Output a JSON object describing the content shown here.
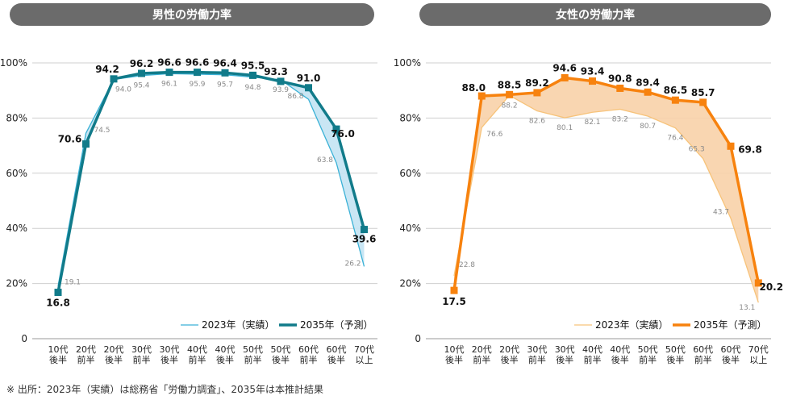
{
  "chart_data": [
    {
      "type": "line",
      "title": "男性の労働力率",
      "categories": [
        [
          "10代",
          "後半"
        ],
        [
          "20代",
          "前半"
        ],
        [
          "20代",
          "後半"
        ],
        [
          "30代",
          "前半"
        ],
        [
          "30代",
          "後半"
        ],
        [
          "40代",
          "前半"
        ],
        [
          "40代",
          "後半"
        ],
        [
          "50代",
          "前半"
        ],
        [
          "50代",
          "後半"
        ],
        [
          "60代",
          "前半"
        ],
        [
          "60代",
          "後半"
        ],
        [
          "70代",
          "以上"
        ]
      ],
      "yticks": [
        "0",
        "20%",
        "40%",
        "60%",
        "80%",
        "100%"
      ],
      "ylim": [
        0,
        100
      ],
      "series": [
        {
          "name": "2023年（実績）",
          "values": [
            19.1,
            74.5,
            94.0,
            95.4,
            96.1,
            95.9,
            95.7,
            94.8,
            93.9,
            86.8,
            63.8,
            26.2
          ],
          "color": "#3ab1d6"
        },
        {
          "name": "2035年（予測）",
          "values": [
            16.8,
            70.6,
            94.2,
            96.2,
            96.6,
            96.6,
            96.4,
            95.5,
            93.3,
            91.0,
            76.0,
            39.6
          ],
          "color": "#117b8a"
        }
      ],
      "fill_color": "#c3e3f3",
      "legend": "bottom-right",
      "grid": true
    },
    {
      "type": "line",
      "title": "女性の労働力率",
      "categories": [
        [
          "10代",
          "後半"
        ],
        [
          "20代",
          "前半"
        ],
        [
          "20代",
          "後半"
        ],
        [
          "30代",
          "前半"
        ],
        [
          "30代",
          "後半"
        ],
        [
          "40代",
          "前半"
        ],
        [
          "40代",
          "後半"
        ],
        [
          "50代",
          "前半"
        ],
        [
          "50代",
          "後半"
        ],
        [
          "60代",
          "前半"
        ],
        [
          "60代",
          "後半"
        ],
        [
          "70代",
          "以上"
        ]
      ],
      "yticks": [
        "0",
        "20%",
        "40%",
        "60%",
        "80%",
        "100%"
      ],
      "ylim": [
        0,
        100
      ],
      "series": [
        {
          "name": "2023年（実績）",
          "values": [
            22.8,
            76.6,
            88.2,
            82.6,
            80.1,
            82.1,
            83.2,
            80.7,
            76.4,
            65.3,
            43.7,
            13.1
          ],
          "color": "#f7c37a"
        },
        {
          "name": "2035年（予測）",
          "values": [
            17.5,
            88.0,
            88.5,
            89.2,
            94.6,
            93.4,
            90.8,
            89.4,
            86.5,
            85.7,
            69.8,
            20.2
          ],
          "color": "#f7820e"
        }
      ],
      "fill_color": "#f8d1a8",
      "legend": "bottom-right",
      "grid": true
    }
  ],
  "footnote": "※ 出所：2023年（実績）は総務省「労働力調査」、2035年は本推計結果"
}
